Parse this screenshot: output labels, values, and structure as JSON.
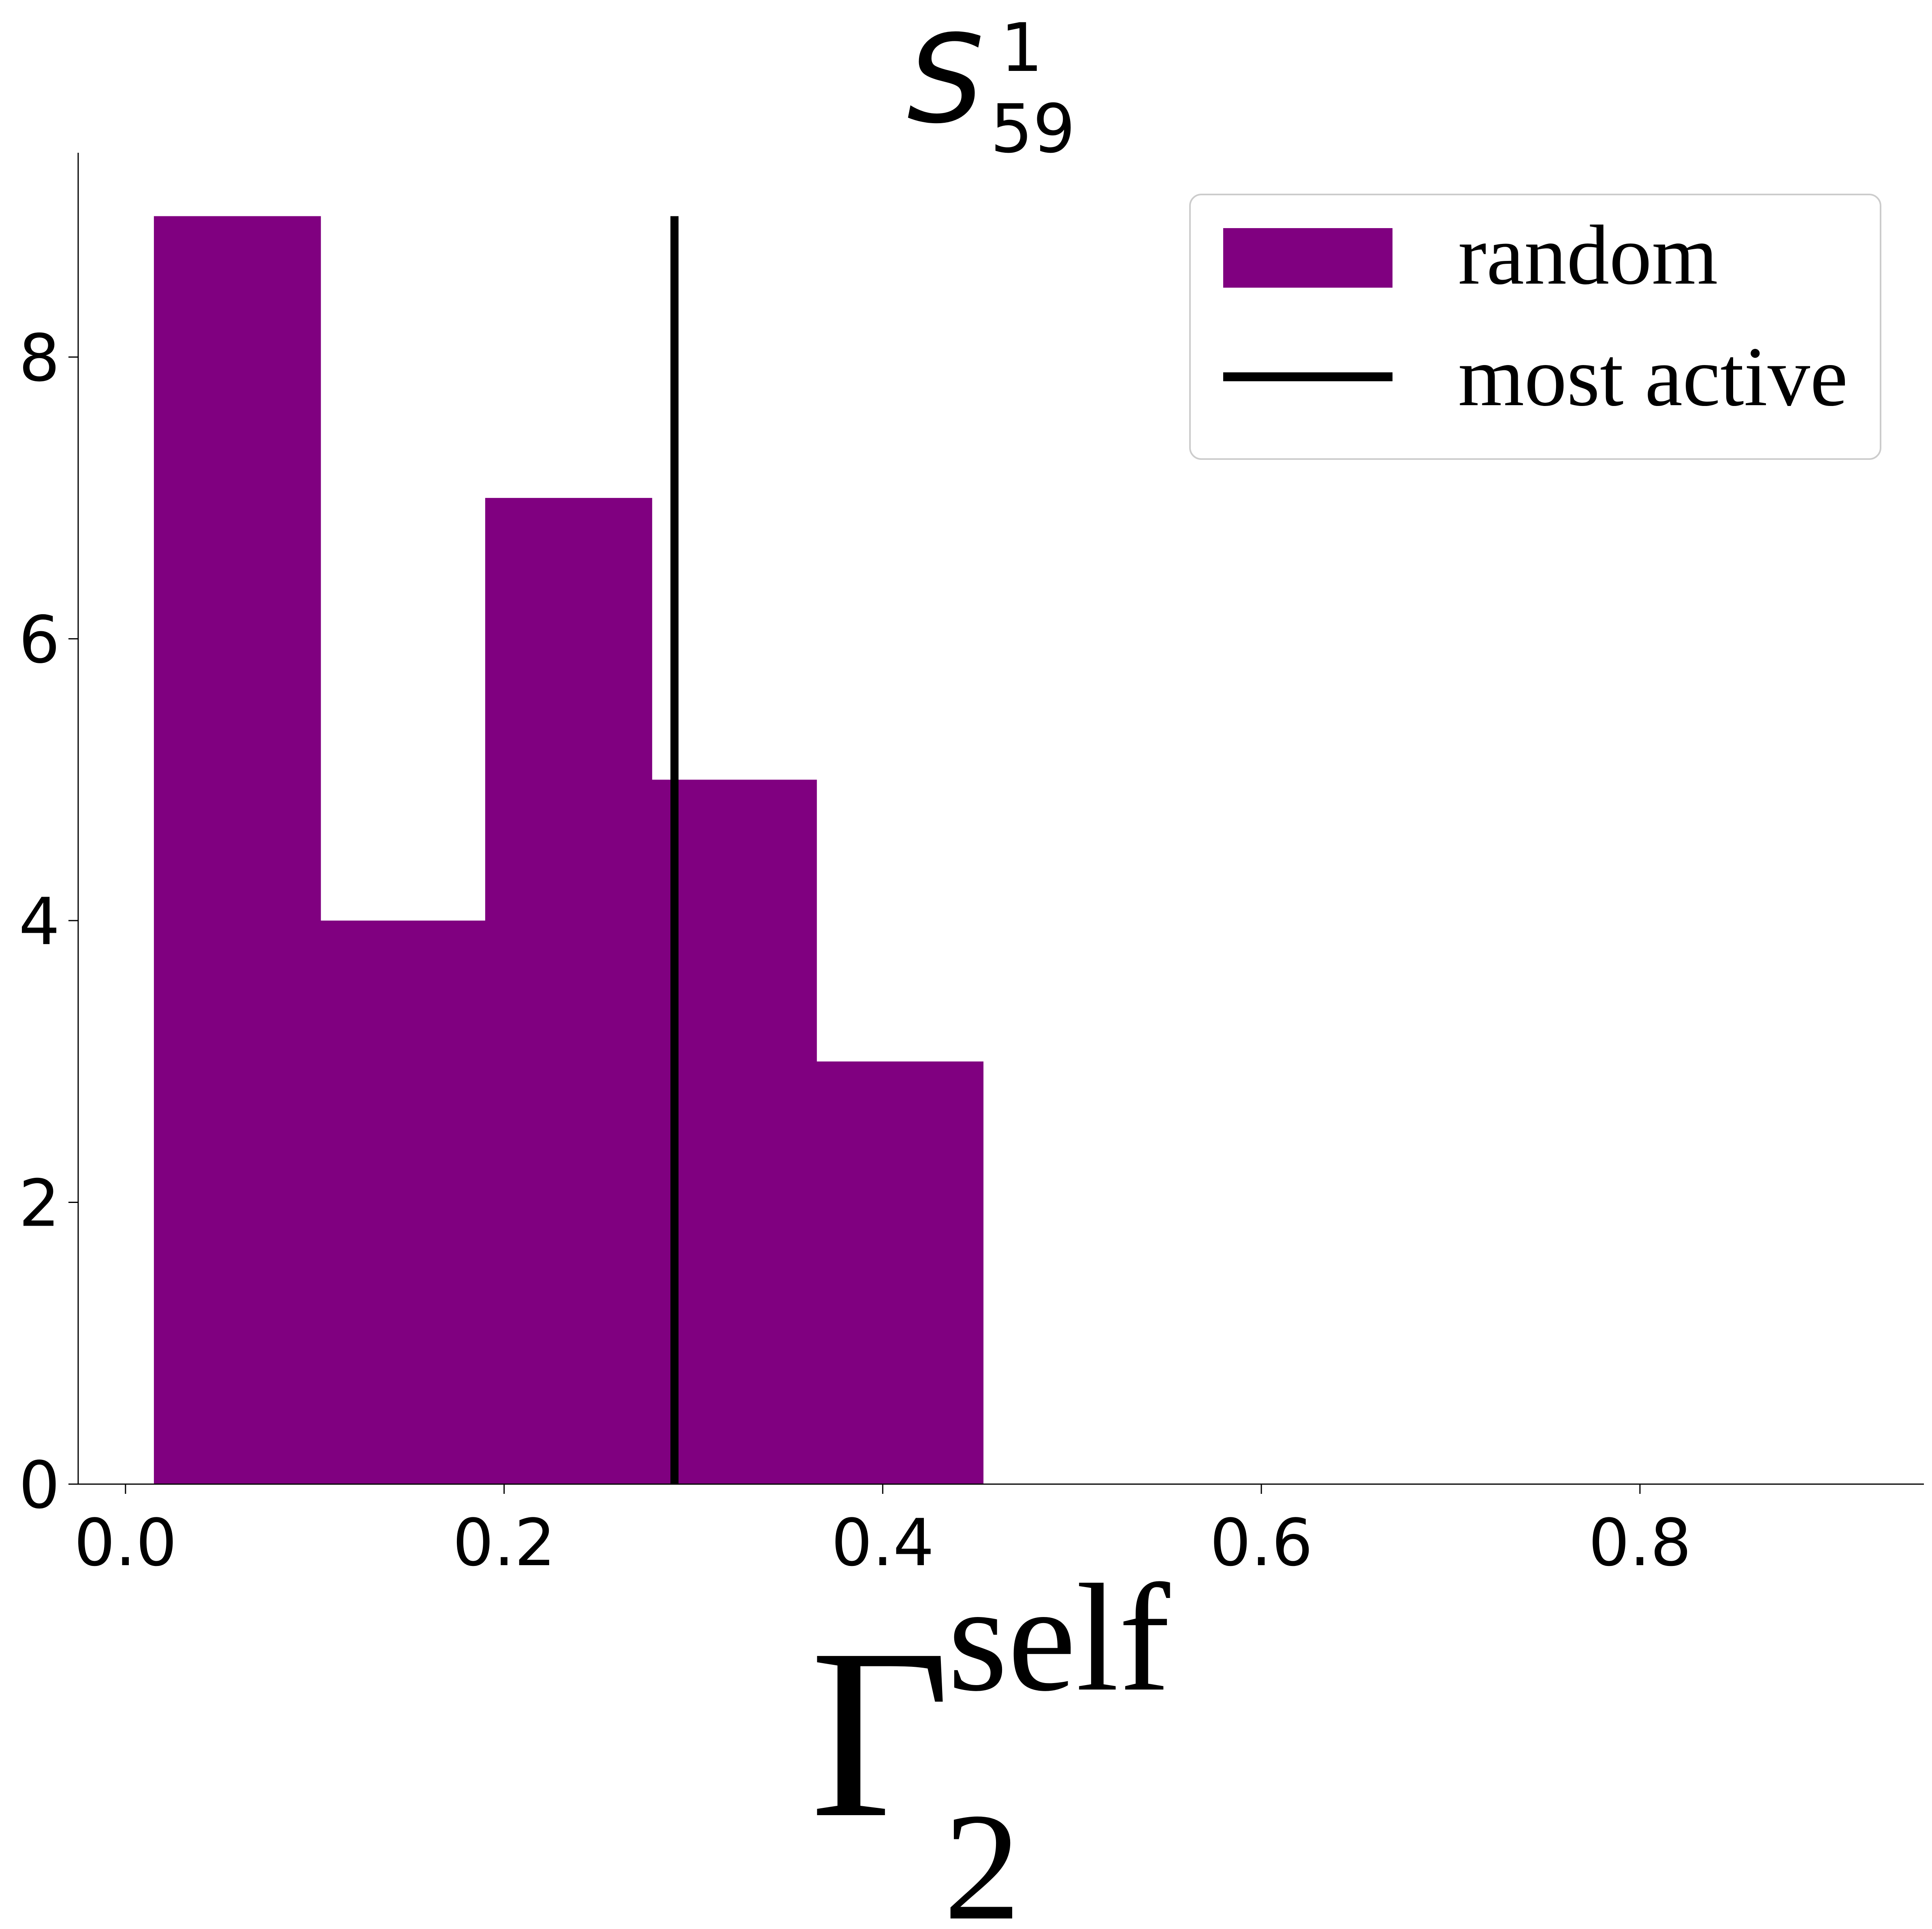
{
  "chart_data": {
    "type": "bar",
    "title": {
      "symbol": "S",
      "superscript": "1",
      "subscript": "59"
    },
    "xlabel": {
      "symbol": "Γ",
      "superscript": "self",
      "subscript": "2"
    },
    "ylabel": "",
    "xlim": [
      -0.025,
      0.95
    ],
    "ylim": [
      0,
      9.45
    ],
    "xticks": [
      0.0,
      0.2,
      0.4,
      0.6,
      0.8
    ],
    "xtick_labels": [
      "0.0",
      "0.2",
      "0.4",
      "0.6",
      "0.8"
    ],
    "yticks": [
      0,
      2,
      4,
      6,
      8
    ],
    "ytick_labels": [
      "0",
      "2",
      "4",
      "6",
      "8"
    ],
    "series": [
      {
        "name": "random",
        "color": "#800080",
        "bins": [
          {
            "x0": 0.015,
            "x1": 0.103,
            "value": 9
          },
          {
            "x0": 0.103,
            "x1": 0.19,
            "value": 4
          },
          {
            "x0": 0.19,
            "x1": 0.278,
            "value": 7
          },
          {
            "x0": 0.278,
            "x1": 0.365,
            "value": 5
          },
          {
            "x0": 0.365,
            "x1": 0.453,
            "value": 3
          }
        ]
      }
    ],
    "reference_line": {
      "name": "most active",
      "x": 0.29,
      "y_max": 9,
      "color": "#000000"
    },
    "legend": {
      "position": "top-right",
      "entries": [
        {
          "label": "random",
          "kind": "patch",
          "color": "#800080"
        },
        {
          "label": "most active",
          "kind": "line",
          "color": "#000000"
        }
      ]
    },
    "grid": false
  }
}
